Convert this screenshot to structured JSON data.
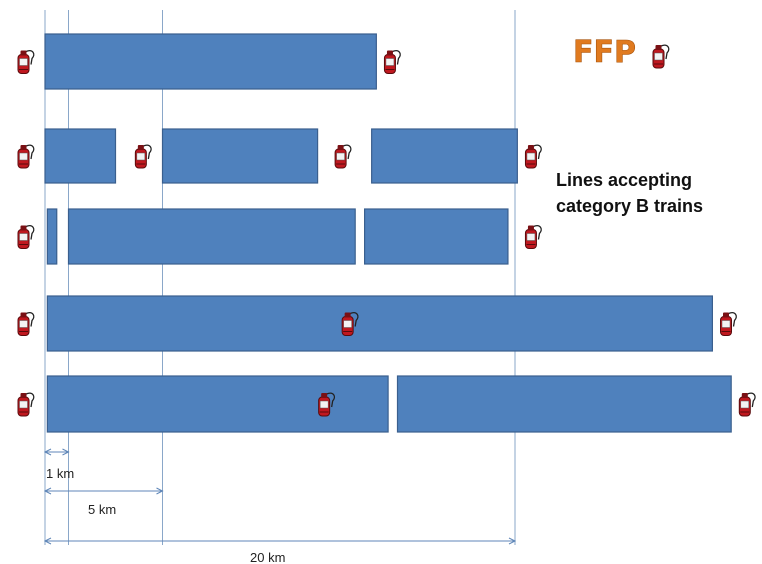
{
  "legend": {
    "title": "FFP",
    "icon": "fire-extinguisher-icon"
  },
  "caption": {
    "line1": "Lines accepting",
    "line2": "category B trains"
  },
  "scale": {
    "label_1": "1 km",
    "label_5": "5 km",
    "label_20": "20 km"
  },
  "colors": {
    "block": "#4f81bd",
    "block_border": "#3a5f8e",
    "extinguisher": "#c0181f",
    "title": "#e07a1f"
  },
  "rows": [
    {
      "segments": [
        [
          0,
          14.1
        ]
      ],
      "extinguishers": [
        0,
        14.7
      ]
    },
    {
      "segments": [
        [
          0,
          3.0
        ],
        [
          5.0,
          11.6
        ],
        [
          13.9,
          20.1
        ]
      ],
      "extinguishers": [
        0,
        4.1,
        12.6,
        20.7
      ]
    },
    {
      "segments": [
        [
          0.1,
          0.5
        ],
        [
          1.0,
          13.2
        ],
        [
          13.6,
          19.7
        ]
      ],
      "extinguishers": [
        0,
        20.7
      ]
    },
    {
      "segments": [
        [
          0.1,
          28.4
        ]
      ],
      "extinguishers": [
        0,
        12.9,
        29.0
      ]
    },
    {
      "segments": [
        [
          0.1,
          14.6
        ],
        [
          15.0,
          29.2
        ]
      ],
      "extinguishers": [
        0,
        11.9,
        29.8
      ]
    }
  ]
}
